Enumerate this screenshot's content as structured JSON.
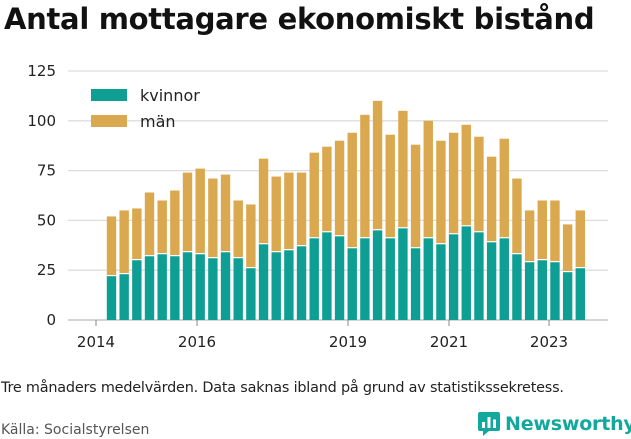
{
  "title": "Antal mottagare ekonomiskt bistånd",
  "footnote": "Tre månaders medelvärden. Data saknas ibland på grund av statistikssekretess.",
  "source": "Källa: Socialstyrelsen",
  "brand": "Newsworthy",
  "colors": {
    "kvinnor": "#0f9e93",
    "man": "#d9a84f",
    "grid": "#dddddd",
    "brand": "#13a89e"
  },
  "chart_data": {
    "type": "bar",
    "stacked": true,
    "ylim": [
      0,
      125
    ],
    "yticks": [
      "0",
      "25",
      "50",
      "75",
      "100",
      "125"
    ],
    "xticks": [
      "2014",
      "2016",
      "2019",
      "2021",
      "2023"
    ],
    "legend": {
      "position": "top-left",
      "entries": [
        "kvinnor",
        "män"
      ]
    },
    "grid": true,
    "series": [
      {
        "name": "kvinnor",
        "values": [
          22,
          23,
          30,
          32,
          33,
          32,
          34,
          33,
          31,
          34,
          31,
          26,
          38,
          34,
          35,
          37,
          41,
          44,
          42,
          36,
          41,
          45,
          41,
          46,
          36,
          41,
          38,
          43,
          47,
          44,
          39,
          41,
          33,
          29,
          30,
          29,
          24,
          26
        ]
      },
      {
        "name": "män",
        "values": [
          30,
          32,
          26,
          32,
          27,
          33,
          40,
          43,
          40,
          39,
          29,
          32,
          43,
          38,
          39,
          37,
          43,
          43,
          48,
          58,
          62,
          65,
          52,
          59,
          52,
          59,
          52,
          51,
          51,
          48,
          43,
          50,
          38,
          26,
          30,
          31,
          24,
          29
        ]
      }
    ]
  }
}
